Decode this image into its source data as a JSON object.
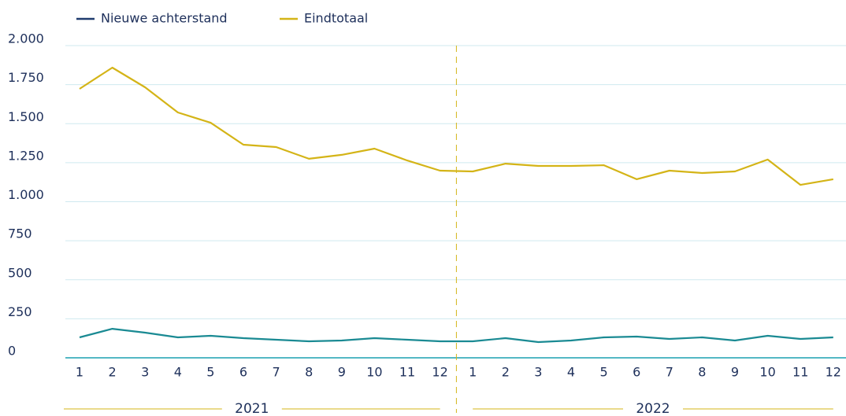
{
  "chart_data": {
    "type": "line",
    "categories": [
      "1",
      "2",
      "3",
      "4",
      "5",
      "6",
      "7",
      "8",
      "9",
      "10",
      "11",
      "12",
      "1",
      "2",
      "3",
      "4",
      "5",
      "6",
      "7",
      "8",
      "9",
      "10",
      "11",
      "12"
    ],
    "groups": [
      "2021",
      "2022"
    ],
    "series": [
      {
        "name": "Nieuwe achterstand",
        "color": "#1a8a93",
        "legend_color": "#1f3b6e",
        "values": [
          131,
          186,
          161,
          131,
          141,
          126,
          116,
          106,
          111,
          126,
          116,
          106,
          106,
          126,
          101,
          111,
          131,
          136,
          121,
          131,
          111,
          141,
          121,
          131
        ]
      },
      {
        "name": "Eindtotaal",
        "color": "#d4b417",
        "legend_color": "#d4b417",
        "values": [
          1723,
          1859,
          1733,
          1572,
          1506,
          1365,
          1350,
          1275,
          1300,
          1340,
          1264,
          1199,
          1194,
          1244,
          1229,
          1229,
          1234,
          1144,
          1199,
          1184,
          1194,
          1270,
          1108,
          1144
        ]
      }
    ],
    "ylim": [
      0,
      2000
    ],
    "yticks": [
      0,
      250,
      500,
      750,
      {
        "value": 1000,
        "label": "1.000"
      },
      {
        "value": 1250,
        "label": "1.250"
      },
      {
        "value": 1500,
        "label": "1.500"
      },
      {
        "value": 1750,
        "label": "1.750"
      },
      {
        "value": 2000,
        "label": "2.000"
      }
    ],
    "grid": true
  }
}
